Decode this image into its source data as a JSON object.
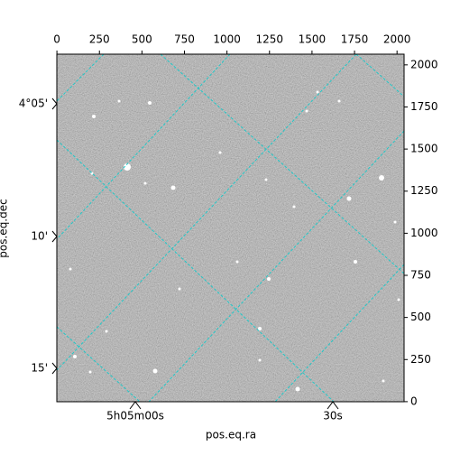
{
  "chart_data": {
    "type": "image",
    "xlabel": "pos.eq.ra",
    "ylabel": "pos.eq.dec",
    "xlim": [
      -0.5,
      2041.5
    ],
    "ylim": [
      -0.5,
      2063.5
    ],
    "xticks": [
      0,
      250,
      500,
      750,
      1000,
      1250,
      1500,
      1750,
      2000
    ],
    "yticks": [
      0,
      250,
      500,
      750,
      1000,
      1250,
      1500,
      1750,
      2000
    ],
    "ra_ticks": [
      "5h05m00s",
      "30s"
    ],
    "dec_ticks": [
      "4°05'",
      "10'",
      "15'"
    ],
    "grid": true,
    "grid_color": "#20c8c8"
  }
}
